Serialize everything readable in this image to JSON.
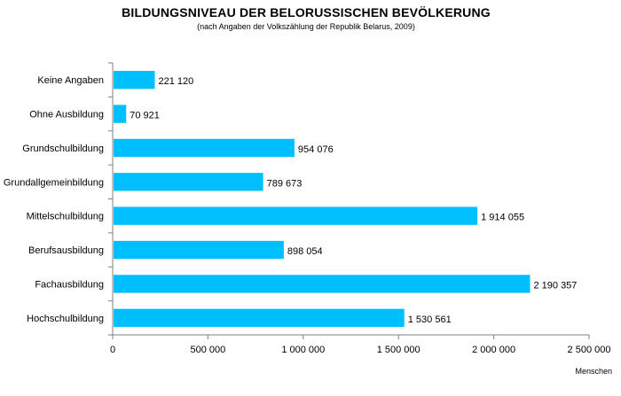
{
  "chart_data": {
    "type": "bar",
    "orientation": "horizontal",
    "title": "BILDUNGSNIVEAU DER BELORUSSISCHEN BEVÖLKERUNG",
    "subtitle": "(nach Angaben der Volkszählung der Republik Belarus, 2009)",
    "xlabel": "Menschen",
    "ylabel": "",
    "xlim": [
      0,
      2500000
    ],
    "x_ticks": [
      0,
      500000,
      1000000,
      1500000,
      2000000,
      2500000
    ],
    "x_tick_labels": [
      "0",
      "500 000",
      "1 000 000",
      "1 500 000",
      "2 000 000",
      "2 500 000"
    ],
    "grid": false,
    "legend": "none",
    "bar_color": "#00BFFF",
    "categories": [
      "Keine Angaben",
      "Ohne Ausbildung",
      "Grundschulbildung",
      "Grundallgemeinbildung",
      "Mittelschulbildung",
      "Berufsausbildung",
      "Fachausbildung",
      "Hochschulbildung"
    ],
    "values": [
      221120,
      70921,
      954076,
      789673,
      1914055,
      898054,
      2190357,
      1530561
    ],
    "value_labels": [
      "221 120",
      "70 921",
      "954 076",
      "789 673",
      "1 914 055",
      "898 054",
      "2 190 357",
      "1 530 561"
    ]
  }
}
